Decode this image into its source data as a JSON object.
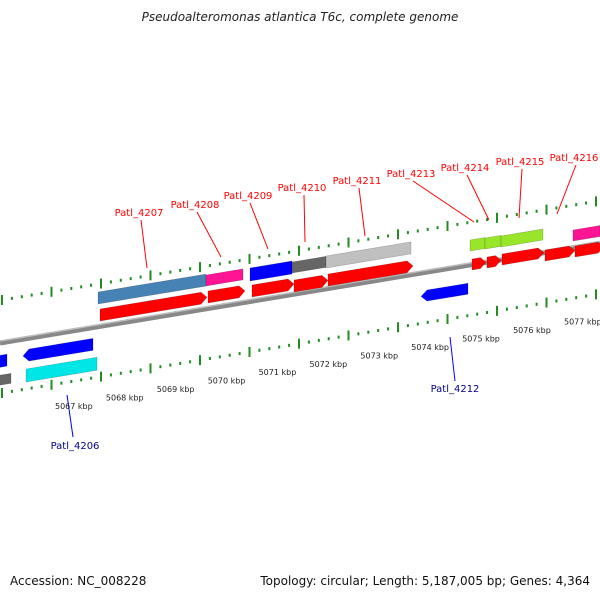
{
  "title": "Pseudoalteromonas atlantica T6c, complete genome",
  "accession": "Accession: NC_008228",
  "summary": "Topology: circular; Length: 5,187,005 bp; Genes: 4,364",
  "colors": {
    "red": "#ff0000",
    "blue": "#0000ff",
    "steel": "#4682b4",
    "magenta": "#ff1493",
    "gray": "#666666",
    "lightgray": "#c0c0c0",
    "lime": "#99e52a",
    "cyan": "#00e6e6",
    "tick": "#228b22"
  },
  "scale_labels": [
    "5067 kbp",
    "5068 kbp",
    "5069 kbp",
    "5070 kbp",
    "5071 kbp",
    "5072 kbp",
    "5073 kbp",
    "5074 kbp",
    "5075 kbp",
    "5076 kbp",
    "5077 kbp"
  ],
  "forward_gene_labels": [
    "Patl_4207",
    "Patl_4208",
    "Patl_4209",
    "Patl_4210",
    "Patl_4211",
    "Patl_4213",
    "Patl_4214",
    "Patl_4215",
    "Patl_4216"
  ],
  "reverse_gene_labels": [
    "Patl_4206",
    "Patl_4212"
  ]
}
